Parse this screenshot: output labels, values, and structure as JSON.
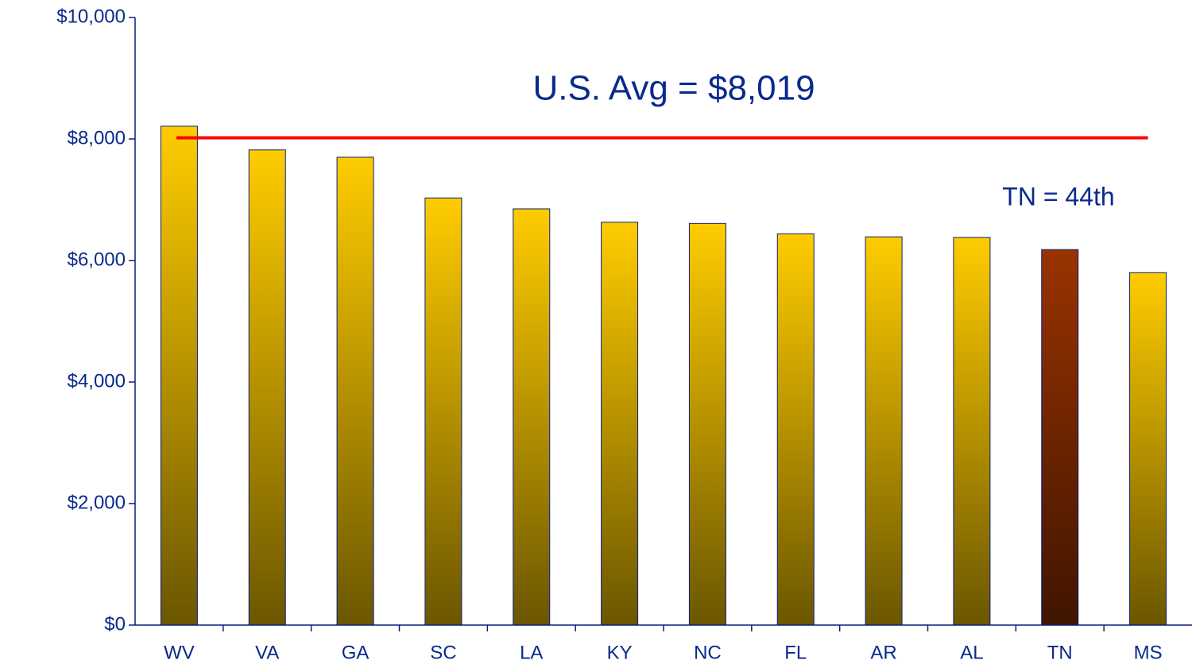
{
  "chart_data": {
    "type": "bar",
    "categories": [
      "WV",
      "VA",
      "GA",
      "SC",
      "LA",
      "KY",
      "NC",
      "FL",
      "AR",
      "AL",
      "TN",
      "MS"
    ],
    "values": [
      8210,
      7820,
      7700,
      7030,
      6850,
      6630,
      6610,
      6440,
      6390,
      6380,
      6180,
      5800
    ],
    "colors": [
      "#ffcc00",
      "#ffcc00",
      "#ffcc00",
      "#ffcc00",
      "#ffcc00",
      "#ffcc00",
      "#ffcc00",
      "#ffcc00",
      "#ffcc00",
      "#ffcc00",
      "#993300",
      "#ffcc00"
    ],
    "ylim": [
      0,
      10000
    ],
    "yticks": [
      {
        "value": 0,
        "label": "$0"
      },
      {
        "value": 2000,
        "label": "$2,000"
      },
      {
        "value": 4000,
        "label": "$4,000"
      },
      {
        "value": 6000,
        "label": "$6,000"
      },
      {
        "value": 8000,
        "label": "$8,000"
      },
      {
        "value": 10000,
        "label": "$10,000"
      }
    ],
    "reference_line": {
      "value": 8019,
      "label": "U.S. Avg = $8,019",
      "color": "#ff0000"
    },
    "annotations": [
      "TN = 44th"
    ]
  }
}
